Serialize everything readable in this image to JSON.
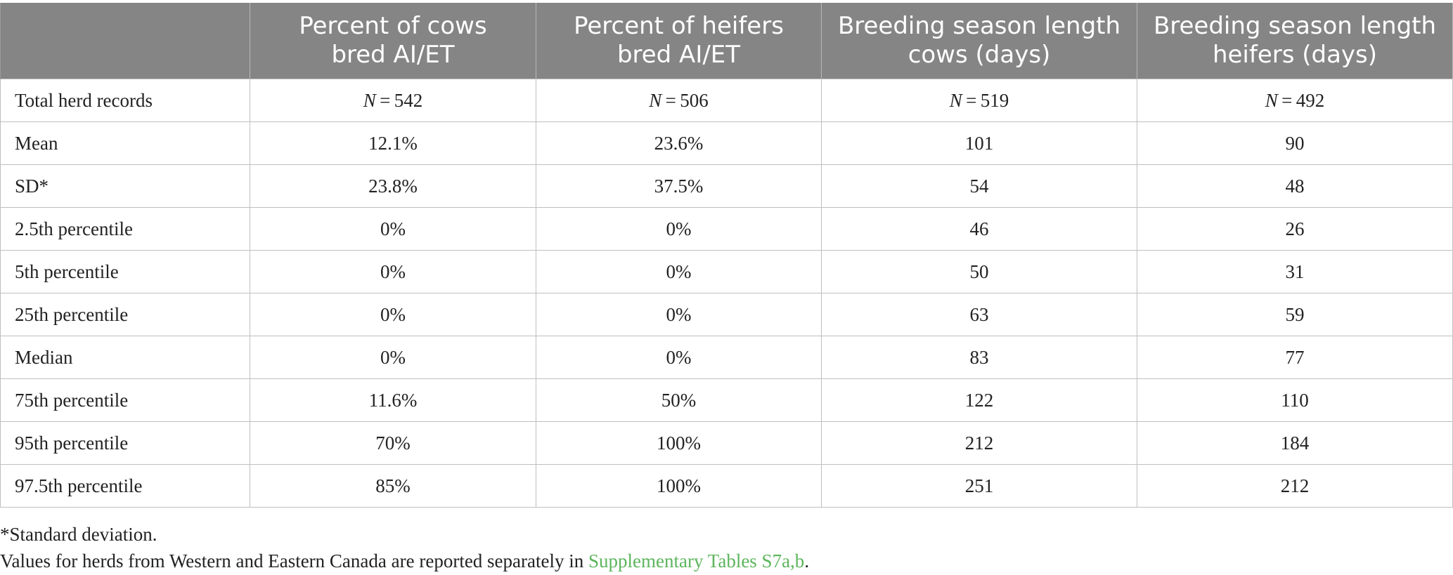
{
  "table": {
    "headers": [
      "",
      [
        "Percent of cows",
        "bred AI/ET"
      ],
      [
        "Percent of heifers",
        "bred AI/ET"
      ],
      [
        "Breeding season length",
        "cows (days)"
      ],
      [
        "Breeding season length",
        "heifers (days)"
      ]
    ],
    "n_row": {
      "label": "Total herd records",
      "prefix": "N",
      "values": [
        " = 542",
        " = 506",
        " = 519",
        " = 492"
      ]
    },
    "rows": [
      {
        "label": "Mean",
        "values": [
          "12.1%",
          "23.6%",
          "101",
          "90"
        ]
      },
      {
        "label": "SD*",
        "values": [
          "23.8%",
          "37.5%",
          "54",
          "48"
        ]
      },
      {
        "label": "2.5th percentile",
        "values": [
          "0%",
          "0%",
          "46",
          "26"
        ]
      },
      {
        "label": "5th percentile",
        "values": [
          "0%",
          "0%",
          "50",
          "31"
        ]
      },
      {
        "label": "25th percentile",
        "values": [
          "0%",
          "0%",
          "63",
          "59"
        ]
      },
      {
        "label": "Median",
        "values": [
          "0%",
          "0%",
          "83",
          "77"
        ]
      },
      {
        "label": "75th percentile",
        "values": [
          "11.6%",
          "50%",
          "122",
          "110"
        ]
      },
      {
        "label": "95th percentile",
        "values": [
          "70%",
          "100%",
          "212",
          "184"
        ]
      },
      {
        "label": "97.5th percentile",
        "values": [
          "85%",
          "100%",
          "251",
          "212"
        ]
      }
    ]
  },
  "footnotes": {
    "sd_note": "*Standard deviation.",
    "values_note_prefix": "Values for herds from Western and Eastern Canada are reported separately in ",
    "values_note_link": "Supplementary Tables S7a,b",
    "values_note_suffix": "."
  },
  "colors": {
    "header_bg": "#858585",
    "header_text": "#ffffff",
    "link": "#5cb55c",
    "grid": "#bfbfbf"
  }
}
